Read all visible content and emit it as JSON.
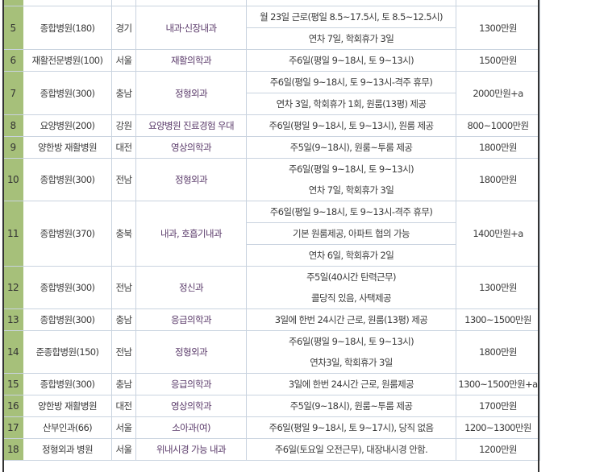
{
  "colors": {
    "number_column": "#a6c07a",
    "grid": "#c9d3df",
    "text": "#3a3a3a"
  },
  "rows": [
    {
      "no": "5",
      "hospital": "종합병원(180)",
      "region": "경기",
      "dept": "내과·신장내과",
      "details": [
        "월 23일 근로(평일 8.5~17.5시, 토 8.5~12.5시)",
        "연차 7일, 학회휴가 3일"
      ],
      "divided": true,
      "salary": "1300만원"
    },
    {
      "no": "6",
      "hospital": "재활전문병원(100)",
      "region": "서울",
      "dept": "재활의학과",
      "details": [
        "주6일(평일 9~18시, 토 9~13시)"
      ],
      "divided": false,
      "salary": "1500만원"
    },
    {
      "no": "7",
      "hospital": "종합병원(300)",
      "region": "충남",
      "dept": "정형외과",
      "details": [
        "주6일(평일 9~18시, 토 9~13시-격주 휴무)",
        "연차 3일, 학회휴가 1회, 원룸(13평) 제공"
      ],
      "divided": true,
      "salary": "2000만원+a"
    },
    {
      "no": "8",
      "hospital": "요양병원(200)",
      "region": "강원",
      "dept": "요양병원 진료경험 우대",
      "details": [
        "주6일(평일 9~18시, 토 9~13시), 원룸 제공"
      ],
      "divided": false,
      "salary": "800~1000만원"
    },
    {
      "no": "9",
      "hospital": "양한방 재활병원",
      "region": "대전",
      "dept": "영상의학과",
      "details": [
        "주5일(9~18시), 원룸~투룸 제공"
      ],
      "divided": false,
      "salary": "1800만원"
    },
    {
      "no": "10",
      "hospital": "종합병원(300)",
      "region": "전남",
      "dept": "정형외과",
      "details": [
        "주6일(평일 9~18시, 토 9~13시)",
        "연차 7일, 학회휴가 3일"
      ],
      "divided": false,
      "salary": "1800만원"
    },
    {
      "no": "11",
      "hospital": "종합병원(370)",
      "region": "충북",
      "dept": "내과, 호흡기내과",
      "details": [
        "주6일(평일 9~18시, 토 9~13시-격주 휴무)",
        "기본 원룸제공, 아파트 협의 가능",
        "연차 6일, 학회휴가 2일"
      ],
      "divided": true,
      "salary": "1400만원+a"
    },
    {
      "no": "12",
      "hospital": "종합병원(300)",
      "region": "전남",
      "dept": "정신과",
      "details": [
        "주5일(40시간 탄력근무)",
        "콜당직 있음, 사택제공"
      ],
      "divided": false,
      "salary": "1300만원"
    },
    {
      "no": "13",
      "hospital": "종합병원(300)",
      "region": "충남",
      "dept": "응급의학과",
      "details": [
        "3일에 한번 24시간 근로, 원룸(13평) 제공"
      ],
      "divided": false,
      "salary": "1300~1500만원"
    },
    {
      "no": "14",
      "hospital": "준종합병원(150)",
      "region": "전남",
      "dept": "정형외과",
      "details": [
        "주6일(평일 9~18시, 토 9~13시)",
        "연차3일, 학회휴가 3일"
      ],
      "divided": false,
      "salary": "1800만원"
    },
    {
      "no": "15",
      "hospital": "종합병원(300)",
      "region": "충남",
      "dept": "응급의학과",
      "details": [
        "3일에 한번 24시간 근로, 원룸제공"
      ],
      "divided": false,
      "salary": "1300~1500만원+a"
    },
    {
      "no": "16",
      "hospital": "양한방 재활병원",
      "region": "대전",
      "dept": "영상의학과",
      "details": [
        "주5일(9~18시), 원룸~투룸 제공"
      ],
      "divided": false,
      "salary": "1700만원"
    },
    {
      "no": "17",
      "hospital": "산부인과(66)",
      "region": "서울",
      "dept": "소아과(여)",
      "details": [
        "주6일(평일 9~18시, 토 9~17시), 당직 없음"
      ],
      "divided": false,
      "salary": "1200~1300만원"
    },
    {
      "no": "18",
      "hospital": "정형외과 병원",
      "region": "서울",
      "dept": "위내시경 가능 내과",
      "details": [
        "주6일(토요일 오전근무), 대장내시경 안함."
      ],
      "divided": false,
      "salary": "1200만원"
    }
  ]
}
